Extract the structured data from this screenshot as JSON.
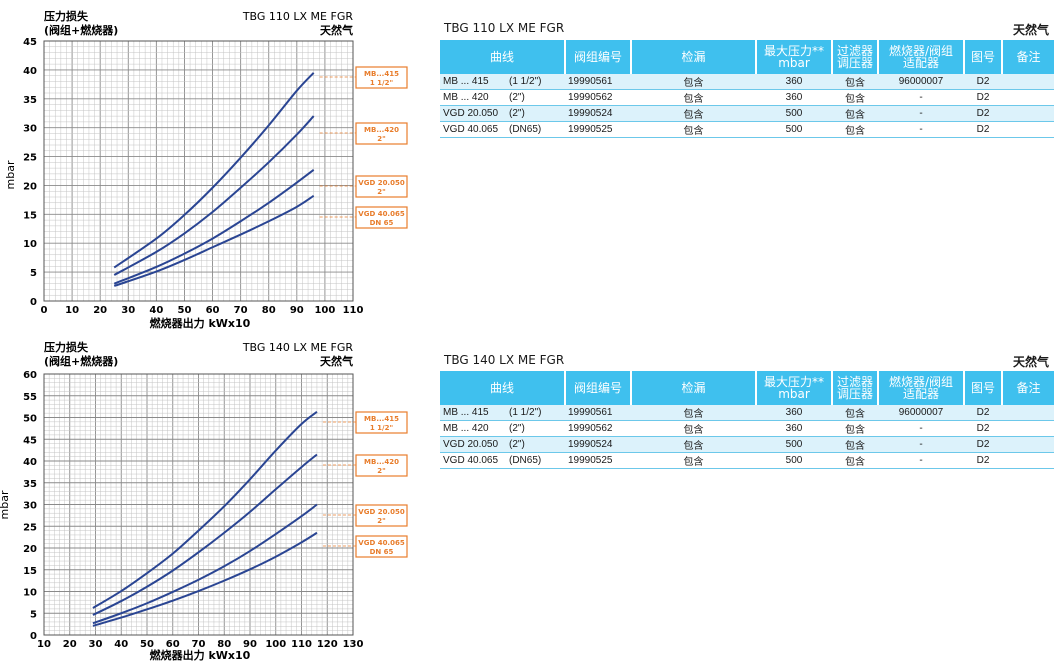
{
  "charts": [
    {
      "model": "TBG 110 LX ME FGR",
      "gas": "天然气",
      "ylabel_title": [
        "压力损失",
        "(阀组+燃烧器)"
      ],
      "ylabel": "mbar",
      "xlabel": "燃烧器出力  kWx10",
      "labels": [
        [
          "MB...415",
          "1 1/2\""
        ],
        [
          "MB...420",
          "2\""
        ],
        [
          "VGD 20.050",
          "2\""
        ],
        [
          "VGD 40.065",
          "DN 65"
        ]
      ]
    },
    {
      "model": "TBG 140 LX ME FGR",
      "gas": "天然气",
      "ylabel_title": [
        "压力损失",
        "(阀组+燃烧器)"
      ],
      "ylabel": "mbar",
      "xlabel": "燃烧器出力  kWx10",
      "labels": [
        [
          "MB...415",
          "1 1/2\""
        ],
        [
          "MB...420",
          "2\""
        ],
        [
          "VGD 20.050",
          "2\""
        ],
        [
          "VGD 40.065",
          "DN 65"
        ]
      ]
    }
  ],
  "chart_data": [
    {
      "type": "line",
      "title": "TBG 110 LX ME FGR",
      "xlabel": "燃烧器出力  kWx10",
      "ylabel": "mbar",
      "xlim": [
        0,
        110
      ],
      "ylim": [
        0,
        45
      ],
      "xticks": [
        0,
        10,
        20,
        30,
        40,
        50,
        60,
        70,
        80,
        90,
        100,
        110
      ],
      "yticks": [
        0,
        5,
        10,
        15,
        20,
        25,
        30,
        35,
        40,
        45
      ],
      "grid": true,
      "series": [
        {
          "name": "MB...415 1 1/2\"",
          "color": "#2a4593",
          "x": [
            25,
            40,
            50,
            60,
            70,
            80,
            90,
            96
          ],
          "y": [
            5.8,
            10.8,
            14.9,
            19.6,
            24.8,
            30.4,
            36.4,
            39.5
          ]
        },
        {
          "name": "MB...420 2\"",
          "color": "#2a4593",
          "x": [
            25,
            40,
            50,
            60,
            70,
            80,
            90,
            96
          ],
          "y": [
            4.5,
            8.5,
            11.7,
            15.4,
            19.6,
            24.0,
            28.8,
            32.0
          ]
        },
        {
          "name": "VGD 20.050 2\"",
          "color": "#2a4593",
          "x": [
            25,
            40,
            50,
            60,
            70,
            80,
            90,
            96
          ],
          "y": [
            3.0,
            5.9,
            8.2,
            10.8,
            13.8,
            17.0,
            20.5,
            22.7
          ]
        },
        {
          "name": "VGD 40.065 DN 65",
          "color": "#2a4593",
          "x": [
            25,
            40,
            50,
            60,
            70,
            80,
            90,
            96
          ],
          "y": [
            2.6,
            5.1,
            7.1,
            9.3,
            11.5,
            13.8,
            16.3,
            18.2
          ]
        }
      ]
    },
    {
      "type": "line",
      "title": "TBG 140 LX ME FGR",
      "xlabel": "燃烧器出力  kWx10",
      "ylabel": "mbar",
      "xlim": [
        10,
        130
      ],
      "ylim": [
        0,
        60
      ],
      "xticks": [
        10,
        20,
        30,
        40,
        50,
        60,
        70,
        80,
        90,
        100,
        110,
        120,
        130
      ],
      "yticks": [
        0,
        5,
        10,
        15,
        20,
        25,
        30,
        35,
        40,
        45,
        50,
        55,
        60
      ],
      "grid": true,
      "series": [
        {
          "name": "MB...415 1 1/2\"",
          "color": "#2a4593",
          "x": [
            29,
            40,
            50,
            60,
            70,
            80,
            90,
            100,
            110,
            116
          ],
          "y": [
            6.2,
            10.1,
            14.2,
            18.7,
            24.0,
            29.6,
            35.8,
            42.4,
            48.5,
            51.3
          ]
        },
        {
          "name": "MB...420 2\"",
          "color": "#2a4593",
          "x": [
            29,
            40,
            50,
            60,
            70,
            80,
            90,
            100,
            110,
            116
          ],
          "y": [
            4.6,
            7.8,
            11.1,
            14.8,
            19.0,
            23.5,
            28.3,
            33.5,
            38.6,
            41.5
          ]
        },
        {
          "name": "VGD 20.050 2\"",
          "color": "#2a4593",
          "x": [
            29,
            40,
            50,
            60,
            70,
            80,
            90,
            100,
            110,
            116
          ],
          "y": [
            2.7,
            5.0,
            7.3,
            9.9,
            12.7,
            15.8,
            19.3,
            23.2,
            27.3,
            30.0
          ]
        },
        {
          "name": "VGD 40.065 DN 65",
          "color": "#2a4593",
          "x": [
            29,
            40,
            50,
            60,
            70,
            80,
            90,
            100,
            110,
            116
          ],
          "y": [
            2.1,
            4.0,
            5.9,
            7.9,
            10.1,
            12.5,
            15.1,
            18.0,
            21.3,
            23.5
          ]
        }
      ]
    }
  ],
  "tables": [
    {
      "title": "TBG 110 LX ME FGR",
      "gas": "天然气",
      "headers": [
        "曲线",
        "阀组编号",
        "检漏",
        "最大压力**\nmbar",
        "过滤器\n调压器",
        "燃烧器/阀组\n适配器",
        "图号",
        "备注"
      ],
      "rows": [
        {
          "model": "MB ... 415",
          "size": "(1 1/2\")",
          "code": "19990561",
          "leak": "包含",
          "pmax": "360",
          "filter": "包含",
          "adapter": "96000007",
          "fig": "D2",
          "note": ""
        },
        {
          "model": "MB ... 420",
          "size": "(2\")",
          "code": "19990562",
          "leak": "包含",
          "pmax": "360",
          "filter": "包含",
          "adapter": "-",
          "fig": "D2",
          "note": ""
        },
        {
          "model": "VGD  20.050",
          "size": "(2\")",
          "code": "19990524",
          "leak": "包含",
          "pmax": "500",
          "filter": "包含",
          "adapter": "-",
          "fig": "D2",
          "note": ""
        },
        {
          "model": "VGD  40.065",
          "size": "(DN65)",
          "code": "19990525",
          "leak": "包含",
          "pmax": "500",
          "filter": "包含",
          "adapter": "-",
          "fig": "D2",
          "note": ""
        }
      ]
    },
    {
      "title": "TBG 140 LX ME FGR",
      "gas": "天然气",
      "headers": [
        "曲线",
        "阀组编号",
        "检漏",
        "最大压力**\nmbar",
        "过滤器\n调压器",
        "燃烧器/阀组\n适配器",
        "图号",
        "备注"
      ],
      "rows": [
        {
          "model": "MB ... 415",
          "size": "(1 1/2\")",
          "code": "19990561",
          "leak": "包含",
          "pmax": "360",
          "filter": "包含",
          "adapter": "96000007",
          "fig": "D2",
          "note": ""
        },
        {
          "model": "MB ... 420",
          "size": "(2\")",
          "code": "19990562",
          "leak": "包含",
          "pmax": "360",
          "filter": "包含",
          "adapter": "-",
          "fig": "D2",
          "note": ""
        },
        {
          "model": "VGD  20.050",
          "size": "(2\")",
          "code": "19990524",
          "leak": "包含",
          "pmax": "500",
          "filter": "包含",
          "adapter": "-",
          "fig": "D2",
          "note": ""
        },
        {
          "model": "VGD  40.065",
          "size": "(DN65)",
          "code": "19990525",
          "leak": "包含",
          "pmax": "500",
          "filter": "包含",
          "adapter": "-",
          "fig": "D2",
          "note": ""
        }
      ]
    }
  ],
  "colors": {
    "accent": "#3fc0ee",
    "curve": "#2a4593",
    "label": "#e87d2c",
    "row_alt": "#dcf2fb"
  }
}
